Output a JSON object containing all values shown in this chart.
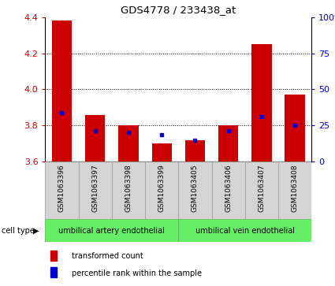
{
  "title": "GDS4778 / 233438_at",
  "samples": [
    "GSM1063396",
    "GSM1063397",
    "GSM1063398",
    "GSM1063399",
    "GSM1063405",
    "GSM1063406",
    "GSM1063407",
    "GSM1063408"
  ],
  "red_values": [
    4.38,
    3.86,
    3.8,
    3.7,
    3.72,
    3.8,
    4.25,
    3.97
  ],
  "blue_values": [
    3.87,
    3.77,
    3.76,
    3.75,
    3.72,
    3.77,
    3.85,
    3.8
  ],
  "ylim": [
    3.6,
    4.4
  ],
  "yticks": [
    3.6,
    3.8,
    4.0,
    4.2,
    4.4
  ],
  "right_yticks": [
    0,
    25,
    50,
    75,
    100
  ],
  "right_ylim": [
    0,
    100
  ],
  "bar_baseline": 3.6,
  "bar_width": 0.6,
  "red_color": "#cc0000",
  "blue_color": "#0000cc",
  "cell_type_groups": [
    {
      "label": "umbilical artery endothelial",
      "samples_count": 4,
      "color": "#66ee66"
    },
    {
      "label": "umbilical vein endothelial",
      "samples_count": 4,
      "color": "#66ee66"
    }
  ],
  "legend_items": [
    {
      "label": "transformed count",
      "color": "#cc0000"
    },
    {
      "label": "percentile rank within the sample",
      "color": "#0000cc"
    }
  ],
  "cell_type_label": "cell type",
  "tick_label_color_left": "#cc0000",
  "tick_label_color_right": "#0000cc",
  "sample_box_color": "#d4d4d4",
  "sample_box_edge": "#999999"
}
